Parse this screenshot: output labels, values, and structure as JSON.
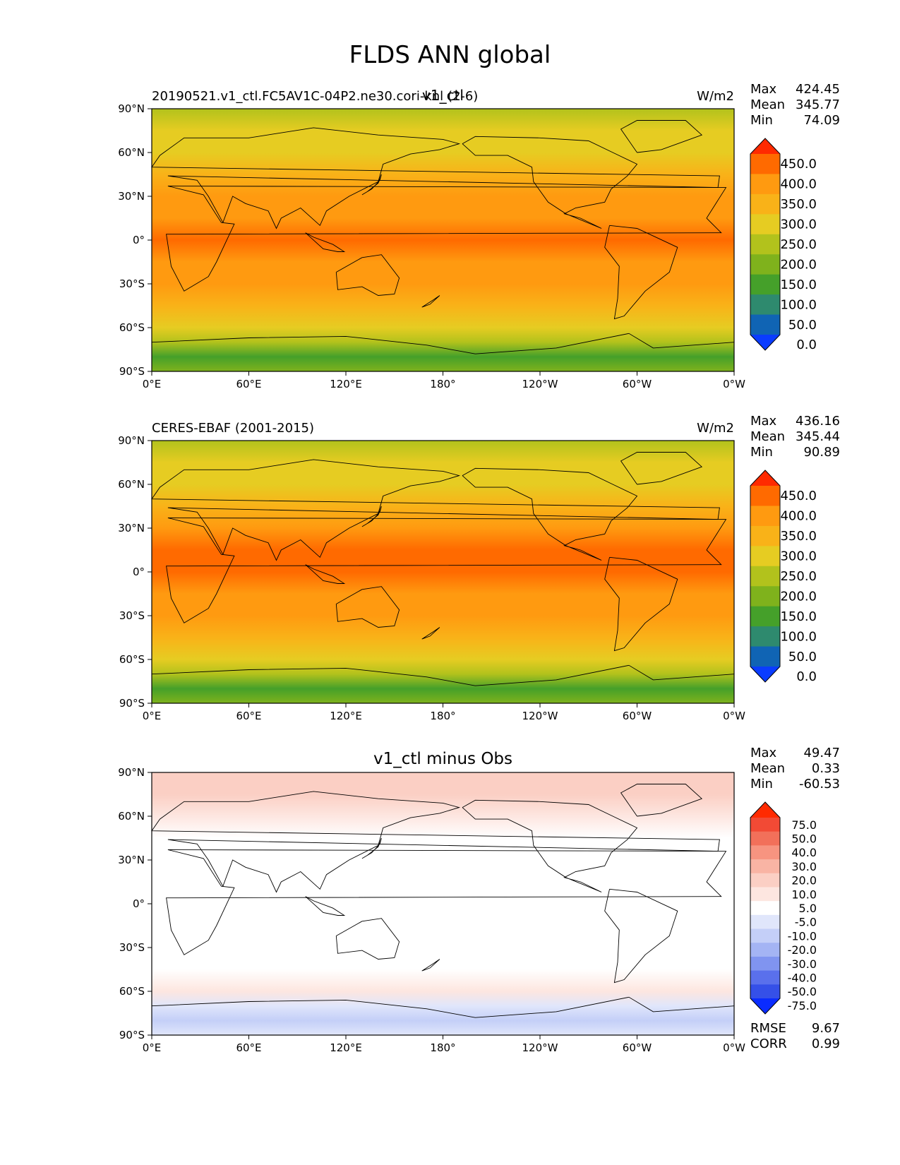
{
  "figure": {
    "title": "FLDS ANN global"
  },
  "chart_data": [
    {
      "type": "heatmap",
      "name": "test",
      "left_label": "20190521.v1_ctl.FC5AV1C-04P2.ne30.cori-knl (2-6)",
      "center_label": "v1_ctl",
      "units": "W/m2",
      "stats": {
        "max_label": "Max",
        "mean_label": "Mean",
        "min_label": "Min",
        "max": "424.45",
        "mean": "345.77",
        "min": "74.09"
      },
      "colorbar_levels": [
        "450.0",
        "400.0",
        "350.0",
        "300.0",
        "250.0",
        "200.0",
        "150.0",
        "100.0",
        "50.0",
        "0.0"
      ],
      "colorbar_colors": [
        "#ff2a00",
        "#ff6a00",
        "#ff9a10",
        "#f9b218",
        "#e6cc22",
        "#b2c21c",
        "#7fb21c",
        "#45a02a",
        "#2e8a6e",
        "#1064b4",
        "#0a3cff"
      ],
      "x_tick_labels": [
        "0°E",
        "60°E",
        "120°E",
        "180°",
        "120°W",
        "60°W",
        "0°W"
      ],
      "y_tick_labels": [
        "90°N",
        "60°N",
        "30°N",
        "0°",
        "30°S",
        "60°S",
        "90°S"
      ],
      "lon_range": [
        0,
        360
      ],
      "lat_range": [
        -90,
        90
      ],
      "zonal_profile_W_m2": [
        [
          90,
          230
        ],
        [
          75,
          255
        ],
        [
          60,
          285
        ],
        [
          45,
          320
        ],
        [
          30,
          360
        ],
        [
          15,
          395
        ],
        [
          0,
          405
        ],
        [
          -15,
          390
        ],
        [
          -30,
          355
        ],
        [
          -45,
          325
        ],
        [
          -60,
          290
        ],
        [
          -70,
          220
        ],
        [
          -80,
          100
        ],
        [
          -90,
          160
        ]
      ]
    },
    {
      "type": "heatmap",
      "name": "reference",
      "left_label": "CERES-EBAF (2001-2015)",
      "center_label": "",
      "units": "W/m2",
      "stats": {
        "max_label": "Max",
        "mean_label": "Mean",
        "min_label": "Min",
        "max": "436.16",
        "mean": "345.44",
        "min": "90.89"
      },
      "colorbar_levels": [
        "450.0",
        "400.0",
        "350.0",
        "300.0",
        "250.0",
        "200.0",
        "150.0",
        "100.0",
        "50.0",
        "0.0"
      ],
      "colorbar_colors": [
        "#ff2a00",
        "#ff6a00",
        "#ff9a10",
        "#f9b218",
        "#e6cc22",
        "#b2c21c",
        "#7fb21c",
        "#45a02a",
        "#2e8a6e",
        "#1064b4",
        "#0a3cff"
      ],
      "x_tick_labels": [
        "0°E",
        "60°E",
        "120°E",
        "180°",
        "120°W",
        "60°W",
        "0°W"
      ],
      "y_tick_labels": [
        "90°N",
        "60°N",
        "30°N",
        "0°",
        "30°S",
        "60°S",
        "90°S"
      ],
      "lon_range": [
        0,
        360
      ],
      "lat_range": [
        -90,
        90
      ],
      "zonal_profile_W_m2": [
        [
          90,
          230
        ],
        [
          75,
          250
        ],
        [
          60,
          285
        ],
        [
          45,
          325
        ],
        [
          30,
          365
        ],
        [
          15,
          400
        ],
        [
          0,
          410
        ],
        [
          -15,
          395
        ],
        [
          -30,
          360
        ],
        [
          -45,
          330
        ],
        [
          -60,
          295
        ],
        [
          -70,
          205
        ],
        [
          -80,
          140
        ],
        [
          -90,
          170
        ]
      ]
    },
    {
      "type": "heatmap",
      "name": "difference",
      "left_label": "",
      "center_label": "v1_ctl minus Obs",
      "units": "",
      "stats": {
        "max_label": "Max",
        "mean_label": "Mean",
        "min_label": "Min",
        "max": "49.47",
        "mean": "0.33",
        "min": "-60.53"
      },
      "extra_stats": {
        "rmse_label": "RMSE",
        "corr_label": "CORR",
        "rmse": "9.67",
        "corr": "0.99"
      },
      "colorbar_levels": [
        "75.0",
        "50.0",
        "40.0",
        "30.0",
        "20.0",
        "10.0",
        "5.0",
        "-5.0",
        "-10.0",
        "-20.0",
        "-30.0",
        "-40.0",
        "-50.0",
        "-75.0"
      ],
      "colorbar_colors": [
        "#ff2a00",
        "#f24a35",
        "#f2705a",
        "#f79480",
        "#f9b4a4",
        "#fbcfc4",
        "#fde6e0",
        "#ffffff",
        "#e0e6fb",
        "#c4cff8",
        "#a4b4f4",
        "#8094f0",
        "#5a70ec",
        "#3550e8",
        "#0a2cff"
      ],
      "x_tick_labels": [
        "0°E",
        "60°E",
        "120°E",
        "180°",
        "120°W",
        "60°W",
        "0°W"
      ],
      "y_tick_labels": [
        "90°N",
        "60°N",
        "30°N",
        "0°",
        "30°S",
        "60°S",
        "90°S"
      ],
      "lon_range": [
        0,
        360
      ],
      "lat_range": [
        -90,
        90
      ],
      "zonal_profile_W_m2": [
        [
          90,
          12
        ],
        [
          75,
          10
        ],
        [
          60,
          6
        ],
        [
          45,
          2
        ],
        [
          30,
          -3
        ],
        [
          15,
          0
        ],
        [
          0,
          2
        ],
        [
          -15,
          0
        ],
        [
          -30,
          0
        ],
        [
          -45,
          4
        ],
        [
          -60,
          8
        ],
        [
          -70,
          -10
        ],
        [
          -80,
          -20
        ],
        [
          -90,
          -8
        ]
      ]
    }
  ]
}
